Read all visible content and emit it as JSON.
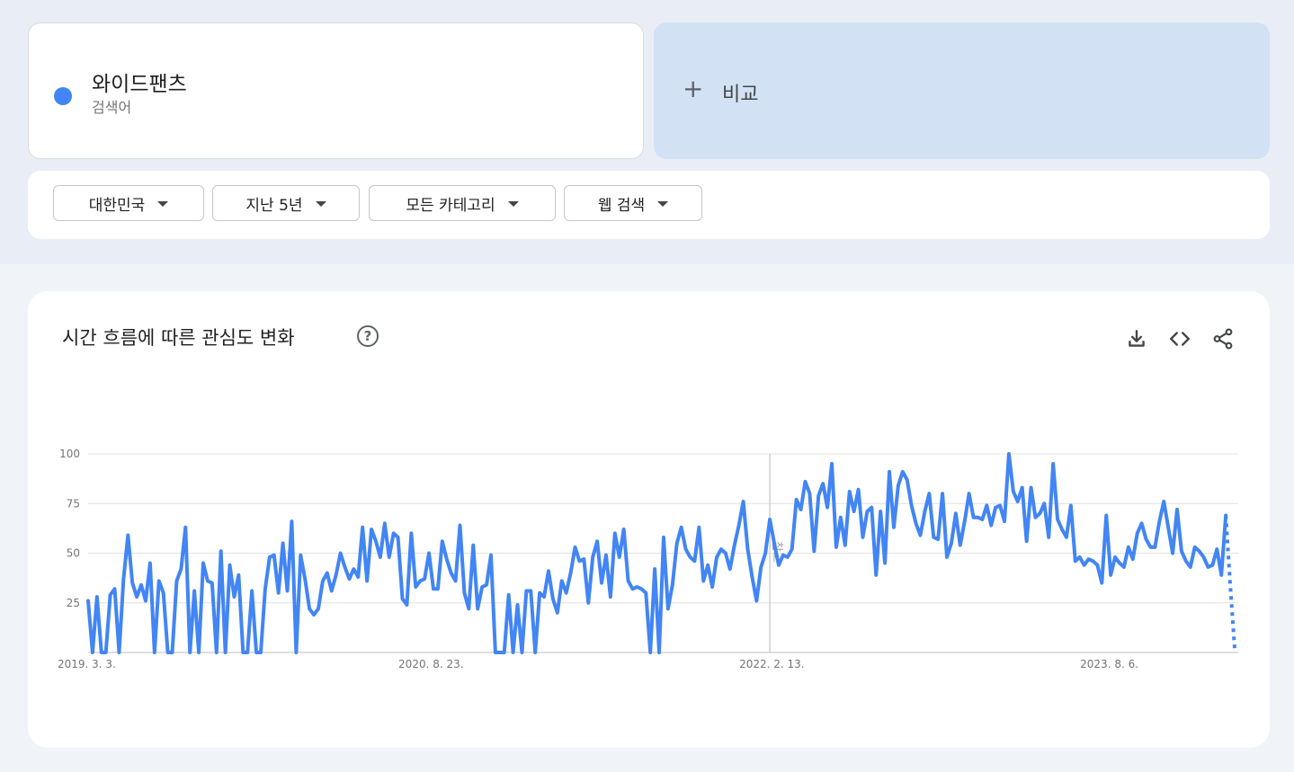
{
  "term": {
    "name": "와이드팬츠",
    "type": "검색어",
    "color": "#4285f4"
  },
  "compare": {
    "icon": "plus-icon",
    "label": "비교"
  },
  "filters": [
    {
      "label": "대한민국"
    },
    {
      "label": "지난 5년"
    },
    {
      "label": "모든 카테고리"
    },
    {
      "label": "웹 검색"
    }
  ],
  "chart": {
    "title": "시간 흐름에 따른 관심도 변화",
    "help_icon": "help-circle-icon",
    "toolbar_icons": [
      "download-icon",
      "embed-code-icon",
      "share-icon"
    ],
    "annotation_label": "참고"
  },
  "chart_data": {
    "type": "line",
    "y_ticks": [
      "100",
      "75",
      "50",
      "25"
    ],
    "ylim": [
      0,
      100
    ],
    "x_tick_labels": [
      "2019. 3. 3.",
      "2020. 8. 23.",
      "2022. 2. 13.",
      "2023. 8. 6."
    ],
    "x_tick_week_index": [
      0,
      77,
      154,
      231
    ],
    "annotation_week_index": 154,
    "line_color": "#4285f4",
    "grid": true,
    "partial_last_points": 2,
    "series": [
      {
        "values": [
          26,
          0,
          28,
          0,
          0,
          29,
          32,
          0,
          37,
          59,
          35,
          28,
          34,
          26,
          45,
          0,
          36,
          30,
          0,
          0,
          36,
          42,
          63,
          0,
          31,
          0,
          45,
          36,
          35,
          0,
          51,
          0,
          44,
          28,
          39,
          0,
          0,
          31,
          0,
          0,
          32,
          48,
          49,
          30,
          55,
          31,
          66,
          0,
          49,
          37,
          22,
          19,
          22,
          36,
          40,
          31,
          39,
          50,
          43,
          37,
          42,
          38,
          63,
          36,
          62,
          56,
          48,
          65,
          48,
          60,
          58,
          27,
          24,
          60,
          33,
          36,
          37,
          50,
          32,
          32,
          56,
          47,
          40,
          36,
          64,
          30,
          22,
          54,
          22,
          33,
          34,
          49,
          0,
          0,
          0,
          29,
          0,
          24,
          0,
          31,
          31,
          0,
          30,
          28,
          41,
          27,
          20,
          36,
          30,
          40,
          53,
          46,
          47,
          25,
          48,
          56,
          35,
          49,
          28,
          60,
          48,
          62,
          36,
          32,
          33,
          32,
          30,
          0,
          42,
          0,
          58,
          22,
          34,
          55,
          63,
          52,
          48,
          46,
          63,
          36,
          44,
          33,
          48,
          52,
          50,
          42,
          54,
          64,
          76,
          52,
          38,
          26,
          43,
          50,
          67,
          55,
          44,
          49,
          48,
          52,
          77,
          72,
          86,
          80,
          51,
          79,
          85,
          73,
          95,
          53,
          68,
          54,
          81,
          71,
          82,
          58,
          71,
          73,
          39,
          71,
          45,
          91,
          63,
          84,
          91,
          87,
          74,
          65,
          59,
          71,
          80,
          58,
          57,
          80,
          48,
          55,
          70,
          54,
          66,
          80,
          68,
          68,
          67,
          74,
          64,
          73,
          74,
          66,
          100,
          81,
          76,
          83,
          56,
          83,
          68,
          70,
          75,
          58,
          95,
          67,
          62,
          58,
          74,
          46,
          48,
          44,
          47,
          46,
          44,
          35,
          69,
          39,
          48,
          45,
          43,
          53,
          47,
          60,
          65,
          57,
          53,
          53,
          66,
          76,
          63,
          50,
          72,
          51,
          46,
          43,
          53,
          51,
          48,
          43,
          44,
          52,
          39,
          69,
          34,
          2
        ]
      }
    ]
  }
}
